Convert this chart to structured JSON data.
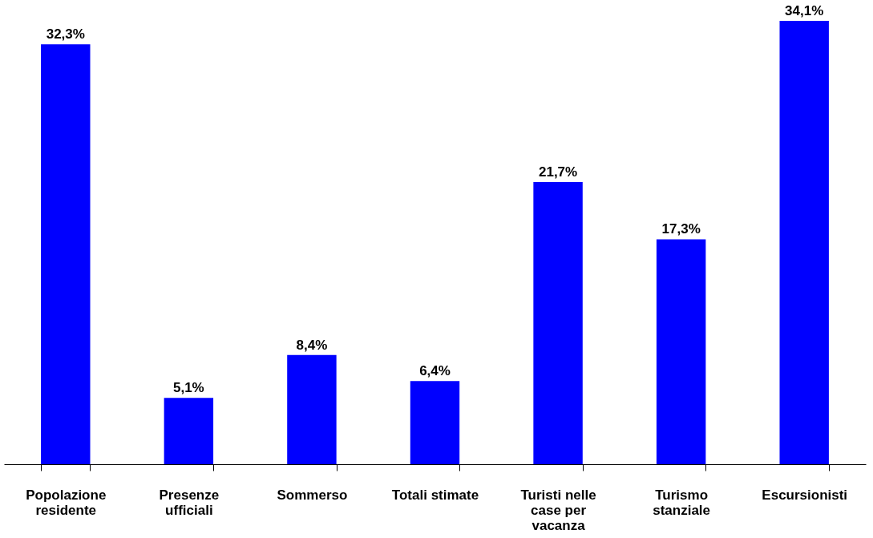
{
  "chart_data": {
    "type": "bar",
    "categories": [
      "Popolazione residente",
      "Presenze ufficiali",
      "Sommerso",
      "Totali stimate",
      "Turisti nelle case per vacanza",
      "Turismo stanziale",
      "Escursionisti"
    ],
    "values": [
      32.3,
      5.1,
      8.4,
      6.4,
      21.7,
      17.3,
      34.1
    ],
    "value_labels": [
      "32,3%",
      "5,1%",
      "8,4%",
      "6,4%",
      "21,7%",
      "17,3%",
      "34,1%"
    ],
    "color": "#0000ff",
    "grid": false,
    "tick_labels": "x"
  }
}
